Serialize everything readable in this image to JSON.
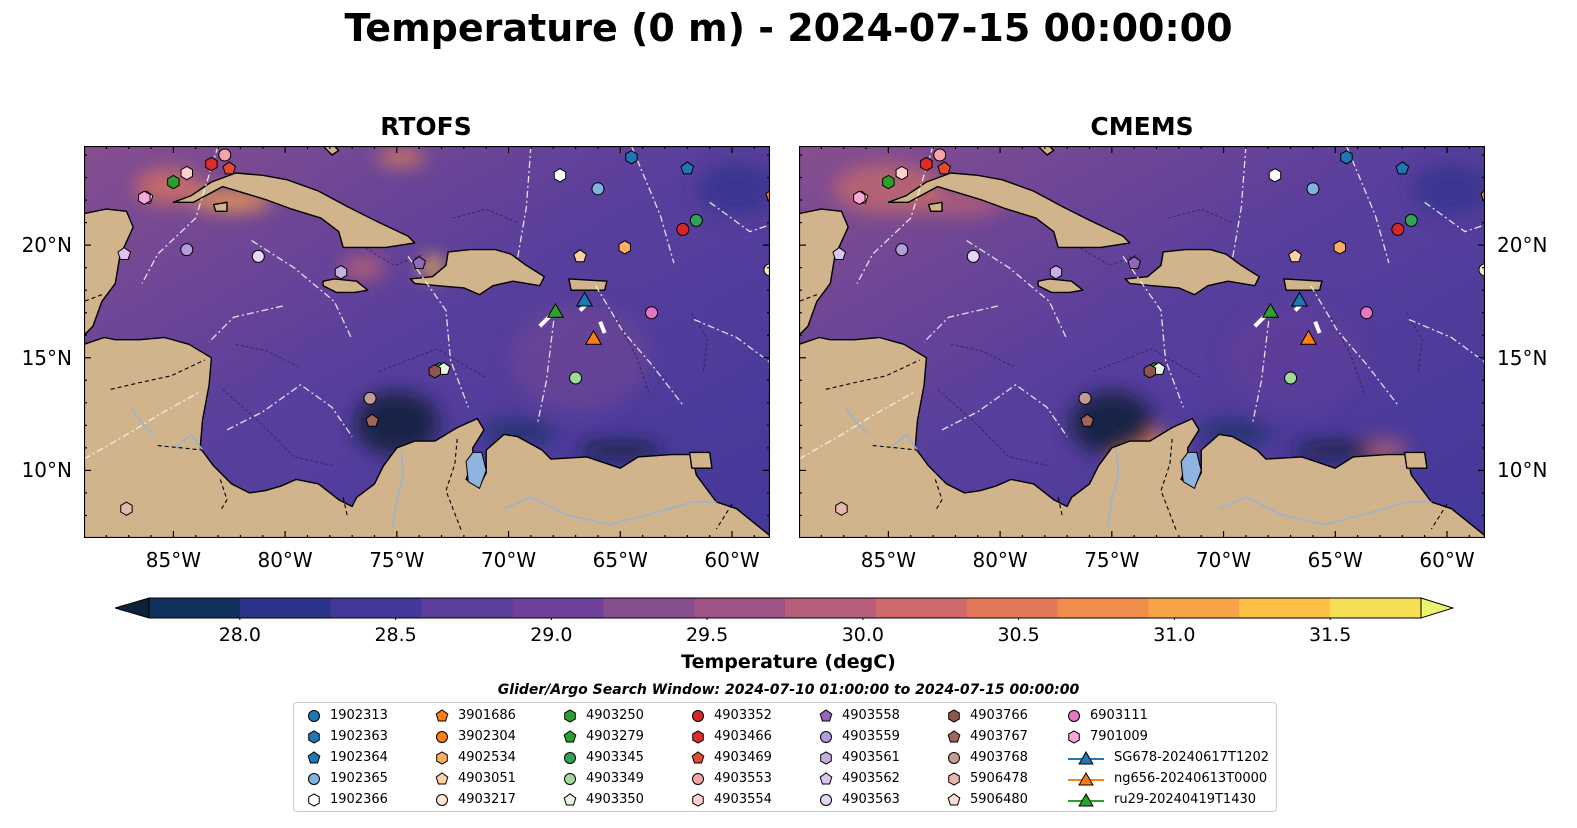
{
  "title": "Temperature (0 m) - 2024-07-15 00:00:00",
  "panels": [
    {
      "title": "RTOFS"
    },
    {
      "title": "CMEMS"
    }
  ],
  "axes": {
    "xticks": [
      "85°W",
      "80°W",
      "75°W",
      "70°W",
      "65°W",
      "60°W"
    ],
    "xtick_values": [
      -85,
      -80,
      -75,
      -70,
      -65,
      -60
    ],
    "yticks": [
      "10°N",
      "15°N",
      "20°N"
    ],
    "ytick_values": [
      10,
      15,
      20
    ],
    "xlim": [
      -89,
      -58.3
    ],
    "ylim": [
      7,
      24.4
    ]
  },
  "colorbar": {
    "label": "Temperature (degC)",
    "ticks": [
      "28.0",
      "28.5",
      "29.0",
      "29.5",
      "30.0",
      "30.5",
      "31.0",
      "31.5"
    ],
    "tick_values": [
      28.0,
      28.5,
      29.0,
      29.5,
      30.0,
      30.5,
      31.0,
      31.5
    ],
    "range": [
      28.0,
      31.5
    ],
    "extend": "both",
    "colors": [
      "#0b2239",
      "#12305e",
      "#2c348a",
      "#43389a",
      "#5a3f9c",
      "#703f97",
      "#874e8f",
      "#9e5487",
      "#b65e7a",
      "#cd686b",
      "#e27759",
      "#f08c4c",
      "#f7a448",
      "#fbc044",
      "#f6de55",
      "#eef36e"
    ]
  },
  "search_window": "Glider/Argo Search Window: 2024-07-10 01:00:00 to 2024-07-15 00:00:00",
  "chart_data": {
    "type": "heatmap",
    "title": "Temperature (0 m) - 2024-07-15 00:00:00",
    "panels": [
      "RTOFS",
      "CMEMS"
    ],
    "x_ticks": [
      "85°W",
      "80°W",
      "75°W",
      "70°W",
      "65°W",
      "60°W"
    ],
    "y_ticks": [
      "10°N",
      "15°N",
      "20°N"
    ],
    "xlim": [
      -89,
      -58.3
    ],
    "ylim": [
      7,
      24.4
    ],
    "colorbar_label": "Temperature (degC)",
    "colorbar_range": [
      28.0,
      31.5
    ],
    "legend_placement": "bottom-center",
    "argo_floats": [
      {
        "id": "1902313",
        "marker": "circle",
        "color": "#1f77b4",
        "lon": -58.0,
        "lat": 22.3
      },
      {
        "id": "1902363",
        "marker": "hexagon",
        "color": "#1f77b4",
        "lon": -64.5,
        "lat": 23.9
      },
      {
        "id": "1902364",
        "marker": "pentagon",
        "color": "#1f77b4",
        "lon": -62.0,
        "lat": 23.4
      },
      {
        "id": "1902365",
        "marker": "circle",
        "color": "#7fb3e0",
        "lon": -66.0,
        "lat": 22.5
      },
      {
        "id": "1902366",
        "marker": "hexagon",
        "color": "#ffffff",
        "lon": -67.7,
        "lat": 23.1
      },
      {
        "id": "3901686",
        "marker": "pentagon",
        "color": "#ff7f0e",
        "lon": -58.2,
        "lat": 22.2
      },
      {
        "id": "3902304",
        "marker": "circle",
        "color": "#ff7f0e",
        "lon": -57.9,
        "lat": 22.1
      },
      {
        "id": "4902534",
        "marker": "hexagon",
        "color": "#fdae61",
        "lon": -64.8,
        "lat": 19.9
      },
      {
        "id": "4903051",
        "marker": "pentagon",
        "color": "#fdd0a2",
        "lon": -66.8,
        "lat": 19.5
      },
      {
        "id": "4903217",
        "marker": "circle",
        "color": "#fee6ce",
        "lon": -58.3,
        "lat": 18.9
      },
      {
        "id": "4903250",
        "marker": "hexagon",
        "color": "#2ca02c",
        "lon": -85.0,
        "lat": 22.8
      },
      {
        "id": "4903279",
        "marker": "pentagon",
        "color": "#2ca02c",
        "lon": -73.1,
        "lat": 14.5
      },
      {
        "id": "4903345",
        "marker": "circle",
        "color": "#31a354",
        "lon": -61.6,
        "lat": 21.1
      },
      {
        "id": "4903349",
        "marker": "circle",
        "color": "#a1d99b",
        "lon": -67.0,
        "lat": 14.1
      },
      {
        "id": "4903350",
        "marker": "pentagon",
        "color": "#e5f5e0",
        "lon": -72.9,
        "lat": 14.5
      },
      {
        "id": "4903352",
        "marker": "circle",
        "color": "#d62728",
        "lon": -62.2,
        "lat": 20.7
      },
      {
        "id": "4903466",
        "marker": "hexagon",
        "color": "#de2d26",
        "lon": -83.3,
        "lat": 23.6
      },
      {
        "id": "4903469",
        "marker": "pentagon",
        "color": "#e34a33",
        "lon": -82.5,
        "lat": 23.4
      },
      {
        "id": "4903553",
        "marker": "circle",
        "color": "#f4a6a6",
        "lon": -82.7,
        "lat": 24.0
      },
      {
        "id": "4903554",
        "marker": "hexagon",
        "color": "#fdd0d0",
        "lon": -84.4,
        "lat": 23.2
      },
      {
        "id": "4903558",
        "marker": "pentagon",
        "color": "#9467bd",
        "lon": -74.0,
        "lat": 19.2
      },
      {
        "id": "4903559",
        "marker": "circle",
        "color": "#b39ddb",
        "lon": -84.4,
        "lat": 19.8
      },
      {
        "id": "4903561",
        "marker": "hexagon",
        "color": "#c5b0e0",
        "lon": -77.5,
        "lat": 18.8
      },
      {
        "id": "4903562",
        "marker": "pentagon",
        "color": "#dcc6f0",
        "lon": -87.2,
        "lat": 19.6
      },
      {
        "id": "4903563",
        "marker": "circle",
        "color": "#e6d5f7",
        "lon": -81.2,
        "lat": 19.5
      },
      {
        "id": "4903766",
        "marker": "hexagon",
        "color": "#8c564b",
        "lon": -73.3,
        "lat": 14.4
      },
      {
        "id": "4903767",
        "marker": "pentagon",
        "color": "#a0665a",
        "lon": -76.1,
        "lat": 12.2
      },
      {
        "id": "4903768",
        "marker": "circle",
        "color": "#c49c94",
        "lon": -76.2,
        "lat": 13.2
      },
      {
        "id": "5906478",
        "marker": "hexagon",
        "color": "#e7b6ac",
        "lon": -87.1,
        "lat": 8.3
      },
      {
        "id": "5906480",
        "marker": "pentagon",
        "color": "#fcdcd4",
        "lon": -86.2,
        "lat": 22.1
      },
      {
        "id": "6903111",
        "marker": "circle",
        "color": "#e377c2",
        "lon": -63.6,
        "lat": 17.0
      },
      {
        "id": "7901009",
        "marker": "hexagon",
        "color": "#f7a8d9",
        "lon": -86.3,
        "lat": 22.1
      }
    ],
    "gliders": [
      {
        "id": "SG678-20240617T1202",
        "color": "#1f77b4",
        "lon": -66.6,
        "lat": 17.5
      },
      {
        "id": "ng656-20240613T0000",
        "color": "#ff7f0e",
        "lon": -66.2,
        "lat": 15.8
      },
      {
        "id": "ru29-20240419T1430",
        "color": "#2ca02c",
        "lon": -67.9,
        "lat": 17.0
      }
    ]
  }
}
